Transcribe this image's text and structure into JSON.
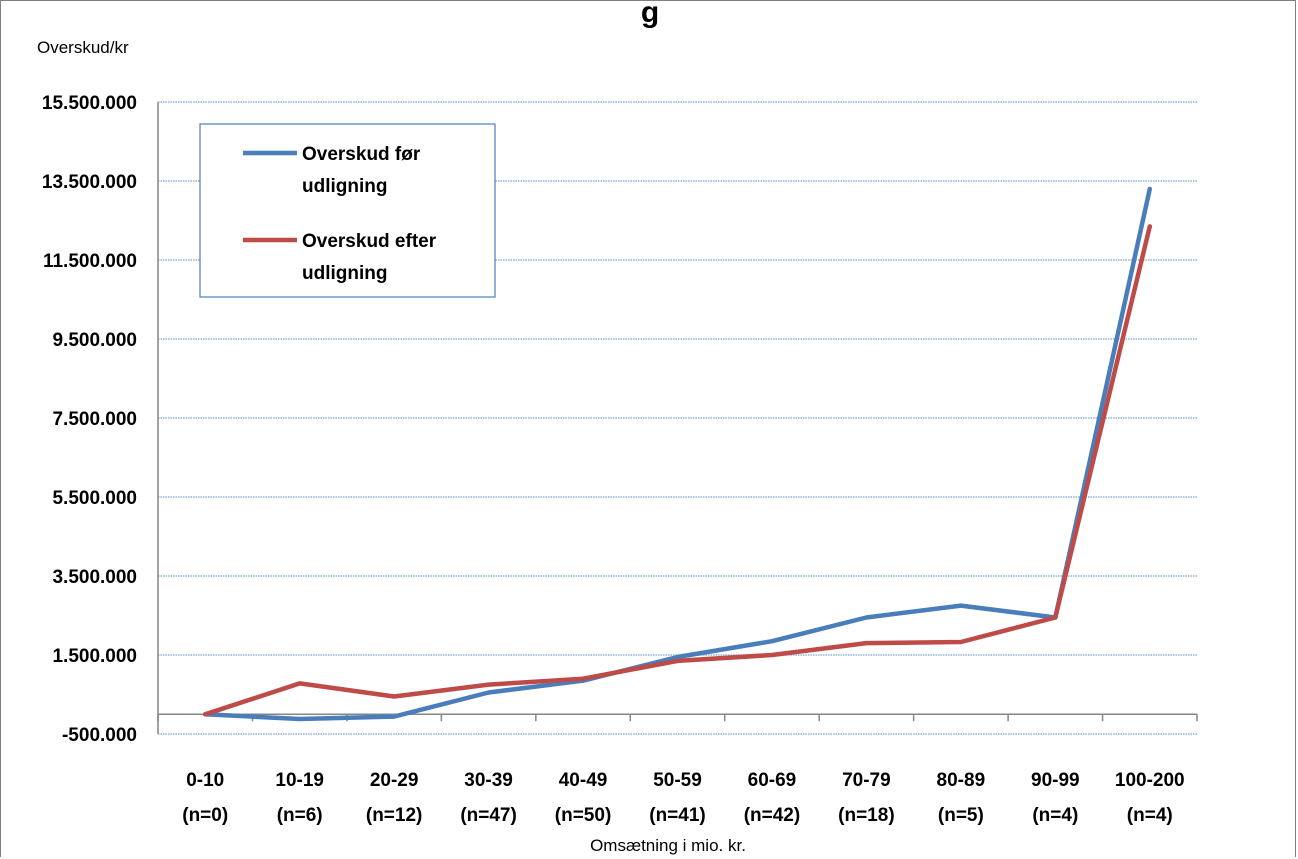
{
  "chart_data": {
    "type": "line",
    "title": "g",
    "ylabel": "Overskud/kr",
    "xlabel": "Omsætning i mio. kr.",
    "ylim": [
      -500000,
      15500000
    ],
    "yticks": [
      -500000,
      1500000,
      3500000,
      5500000,
      7500000,
      9500000,
      11500000,
      13500000,
      15500000
    ],
    "ytick_labels": [
      "-500.000",
      "1.500.000",
      "3.500.000",
      "5.500.000",
      "7.500.000",
      "9.500.000",
      "11.500.000",
      "13.500.000",
      "15.500.000"
    ],
    "categories": [
      [
        "0-10",
        "(n=0)"
      ],
      [
        "10-19",
        "(n=6)"
      ],
      [
        "20-29",
        "(n=12)"
      ],
      [
        "30-39",
        "(n=47)"
      ],
      [
        "40-49",
        "(n=50)"
      ],
      [
        "50-59",
        "(n=41)"
      ],
      [
        "60-69",
        "(n=42)"
      ],
      [
        "70-79",
        "(n=18)"
      ],
      [
        "80-89",
        "(n=5)"
      ],
      [
        "90-99",
        "(n=4)"
      ],
      [
        "100-200",
        "(n=4)"
      ]
    ],
    "series": [
      {
        "name": "Overskud før udligning",
        "legend_lines": [
          "Overskud før",
          "udligning"
        ],
        "color": "#4a7ebb",
        "values": [
          0,
          -120000,
          -60000,
          550000,
          850000,
          1450000,
          1850000,
          2450000,
          2750000,
          2450000,
          13300000
        ]
      },
      {
        "name": "Overskud efter udligning",
        "legend_lines": [
          "Overskud efter",
          "udligning"
        ],
        "color": "#be4b48",
        "values": [
          0,
          780000,
          450000,
          750000,
          900000,
          1350000,
          1500000,
          1800000,
          1830000,
          2450000,
          12350000
        ]
      }
    ],
    "grid": true,
    "legend_position": "top-left"
  }
}
